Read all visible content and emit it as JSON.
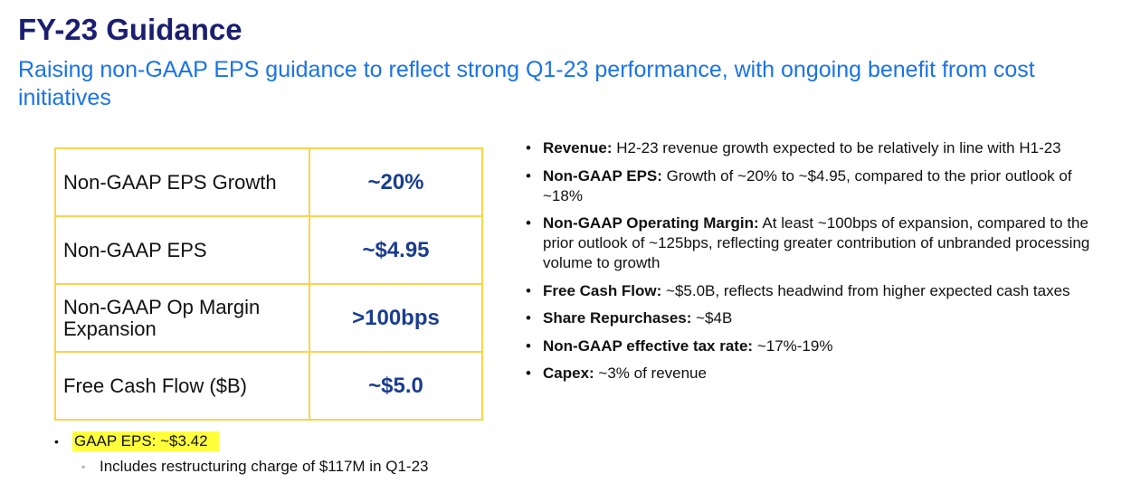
{
  "header": {
    "title": "FY-23 Guidance",
    "subtitle": "Raising non-GAAP EPS guidance to reflect strong Q1-23 performance, with ongoing benefit from cost initiatives"
  },
  "table": {
    "rows": [
      {
        "metric": "Non-GAAP EPS Growth",
        "value": "~20%"
      },
      {
        "metric": "Non-GAAP EPS",
        "value": "~$4.95"
      },
      {
        "metric": "Non-GAAP Op Margin Expansion",
        "value": ">100bps"
      },
      {
        "metric": "Free Cash Flow ($B)",
        "value": "~$5.0"
      }
    ]
  },
  "left_notes": {
    "gaap_eps": "GAAP EPS: ~$3.42",
    "sub_note": "Includes restructuring charge of $117M in Q1-23"
  },
  "bullets": [
    {
      "label": "Revenue:",
      "text": " H2-23 revenue growth expected to be relatively in line with H1-23"
    },
    {
      "label": "Non-GAAP EPS:",
      "text": " Growth of ~20% to ~$4.95, compared to the prior outlook of ~18%"
    },
    {
      "label": "Non-GAAP Operating Margin:",
      "text": " At least ~100bps of expansion, compared to the prior outlook of ~125bps, reflecting greater contribution of unbranded processing volume to growth"
    },
    {
      "label": "Free Cash Flow:",
      "text": " ~$5.0B, reflects headwind from higher expected cash taxes"
    },
    {
      "label": "Share Repurchases:",
      "text": " ~$4B"
    },
    {
      "label": "Non-GAAP effective tax rate:",
      "text": " ~17%-19%"
    },
    {
      "label": "Capex:",
      "text": " ~3% of revenue"
    }
  ],
  "colors": {
    "title": "#1a1f71",
    "subtitle": "#1a73e8",
    "table_border": "#fcd34d",
    "value_text": "#1a3d8f",
    "highlight": "#ffff3c"
  }
}
